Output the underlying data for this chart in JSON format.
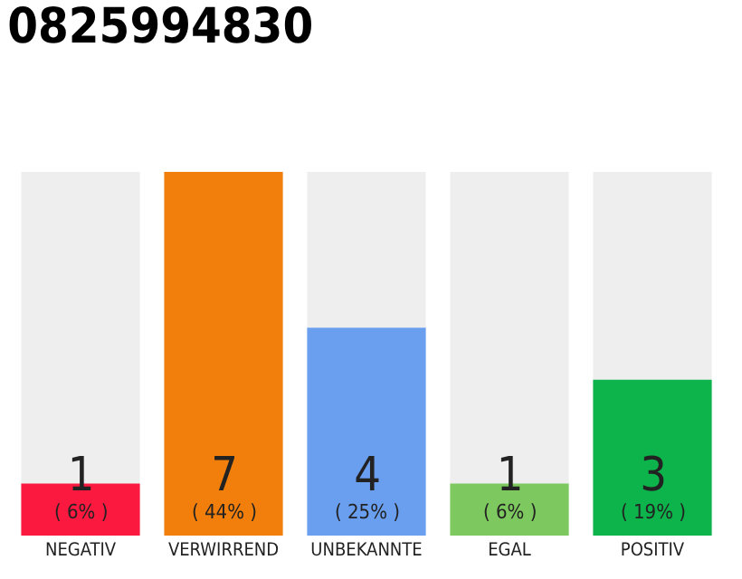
{
  "chart_data": {
    "type": "bar",
    "title": "0825994830",
    "categories": [
      "NEGATIV",
      "VERWIRREND",
      "UNBEKANNTE",
      "EGAL",
      "POSITIV"
    ],
    "values": [
      1,
      7,
      4,
      1,
      3
    ],
    "colors": [
      "#fc1940",
      "#f27f0c",
      "#6a9ff0",
      "#7ec95f",
      "#0db44b"
    ],
    "value_labels": [
      "1\n( 6% )",
      "7\n( 44% )",
      "4\n( 25% )",
      "1\n( 6% )",
      "3\n( 19% )"
    ]
  }
}
